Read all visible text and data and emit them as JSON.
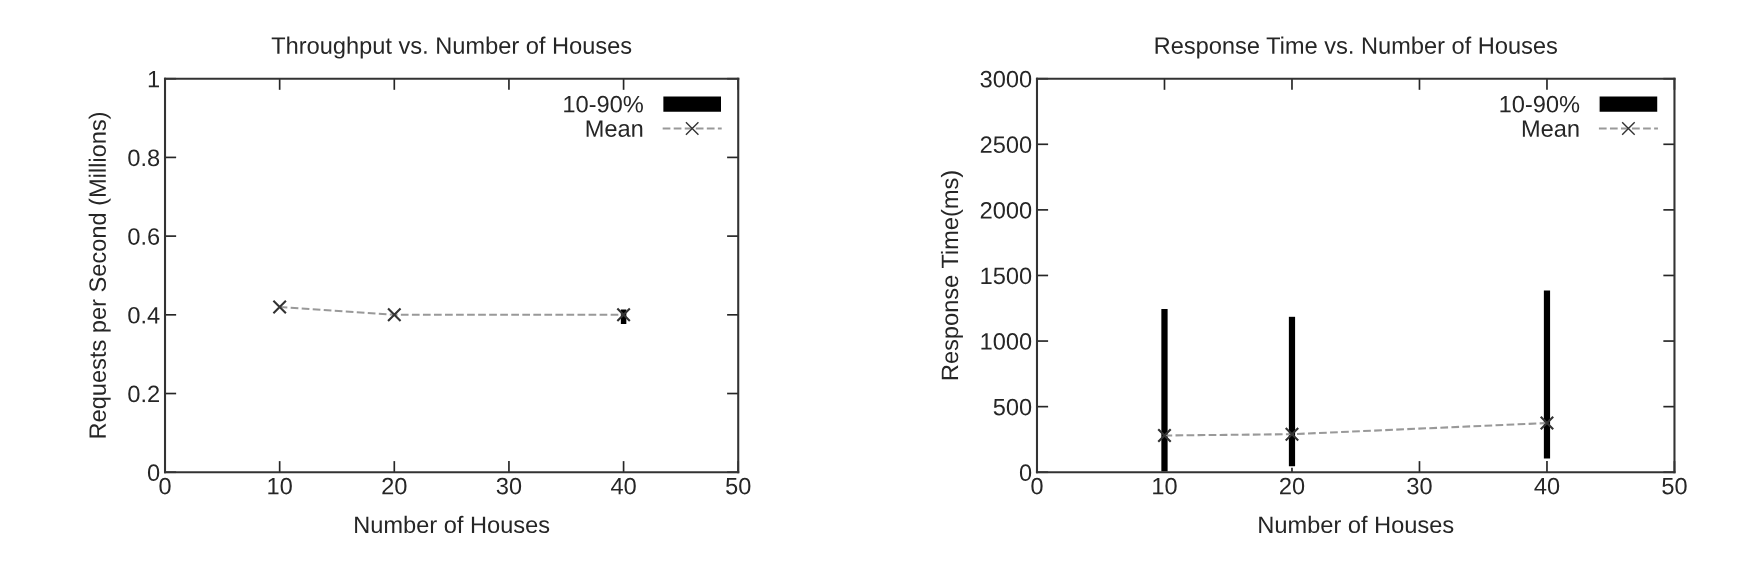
{
  "chart_data": [
    {
      "type": "line",
      "title": "Throughput vs. Number of Houses",
      "xlabel": "Number of Houses",
      "ylabel": "Requests per Second (Millions)",
      "xlim": [
        0,
        50
      ],
      "xticks": [
        0,
        10,
        20,
        30,
        40,
        50
      ],
      "ylim": [
        0,
        1
      ],
      "yticks": [
        0,
        0.2,
        0.4,
        0.6,
        0.8,
        1
      ],
      "legend": "top right",
      "grid": false,
      "series": [
        {
          "name": "10-90%",
          "type": "bar",
          "color": "#000000",
          "x": [
            40
          ],
          "base": [
            0.375
          ],
          "values": [
            0.04
          ]
        },
        {
          "name": "Mean",
          "color": "#999999",
          "x": [
            10,
            20,
            40
          ],
          "values": [
            0.42,
            0.4,
            0.4
          ],
          "marker": "cross",
          "line_style": "dashed"
        }
      ]
    },
    {
      "type": "line",
      "title": "Response Time vs. Number of Houses",
      "xlabel": "Number of Houses",
      "ylabel": "Response Time(ms)",
      "xlim": [
        0,
        50
      ],
      "xticks": [
        0,
        10,
        20,
        30,
        40,
        50
      ],
      "ylim": [
        0,
        3000
      ],
      "yticks": [
        0,
        500,
        1000,
        1500,
        2000,
        2500,
        3000
      ],
      "legend": "top right",
      "grid": false,
      "series": [
        {
          "name": "10-90%",
          "type": "bar",
          "color": "#000000",
          "x": [
            10,
            20,
            40
          ],
          "base": [
            0,
            40,
            100
          ],
          "values": [
            1250,
            1150,
            1290
          ]
        },
        {
          "name": "Mean",
          "color": "#999999",
          "x": [
            10,
            20,
            40
          ],
          "values": [
            280,
            290,
            375
          ],
          "marker": "cross",
          "line_style": "dashed"
        }
      ]
    }
  ]
}
